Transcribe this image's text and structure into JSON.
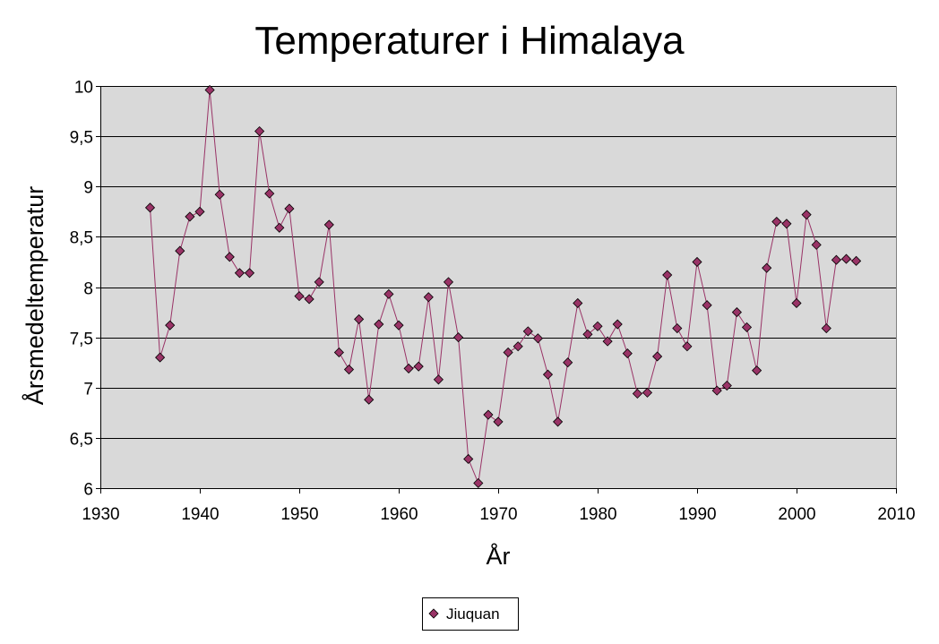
{
  "chart_data": {
    "type": "line",
    "title": "Temperaturer i Himalaya",
    "xlabel": "År",
    "ylabel": "Årsmedeltemperatur",
    "xlim": [
      1930,
      2010
    ],
    "ylim": [
      6,
      10
    ],
    "xticks": [
      "1930",
      "1940",
      "1950",
      "1960",
      "1970",
      "1980",
      "1990",
      "2000",
      "2010"
    ],
    "yticks": [
      "6",
      "6,5",
      "7",
      "7,5",
      "8",
      "8,5",
      "9",
      "9,5",
      "10"
    ],
    "grid": true,
    "legend_position": "bottom",
    "colors": {
      "series": "#993366",
      "plot_bg": "#d9d9d9"
    },
    "series": [
      {
        "name": "Jiuquan",
        "x": [
          1935,
          1936,
          1937,
          1938,
          1939,
          1940,
          1941,
          1942,
          1943,
          1944,
          1945,
          1946,
          1947,
          1948,
          1949,
          1950,
          1951,
          1952,
          1953,
          1954,
          1955,
          1956,
          1957,
          1958,
          1959,
          1960,
          1961,
          1962,
          1963,
          1964,
          1965,
          1966,
          1967,
          1968,
          1969,
          1970,
          1971,
          1972,
          1973,
          1974,
          1975,
          1976,
          1977,
          1978,
          1979,
          1980,
          1981,
          1982,
          1983,
          1984,
          1985,
          1986,
          1987,
          1988,
          1989,
          1990,
          1991,
          1992,
          1993,
          1994,
          1995,
          1996,
          1997,
          1998,
          1999,
          2000,
          2001,
          2002,
          2003,
          2004,
          2005,
          2006
        ],
        "y": [
          8.79,
          7.3,
          7.62,
          8.36,
          8.7,
          8.75,
          9.96,
          8.92,
          8.3,
          8.14,
          8.14,
          9.55,
          8.93,
          8.59,
          8.78,
          7.91,
          7.88,
          8.05,
          8.62,
          7.35,
          7.18,
          7.68,
          6.88,
          7.63,
          7.93,
          7.62,
          7.19,
          7.21,
          7.9,
          7.08,
          8.05,
          7.5,
          6.29,
          6.05,
          6.73,
          6.66,
          7.35,
          7.41,
          7.56,
          7.49,
          7.13,
          6.66,
          7.25,
          7.84,
          7.53,
          7.61,
          7.46,
          7.63,
          7.34,
          6.94,
          6.95,
          7.31,
          8.12,
          7.59,
          7.41,
          8.25,
          7.82,
          6.97,
          7.02,
          7.75,
          7.6,
          7.17,
          8.19,
          8.65,
          8.63,
          7.84,
          8.72,
          8.42,
          7.59,
          8.27,
          8.28,
          8.26
        ]
      }
    ]
  }
}
